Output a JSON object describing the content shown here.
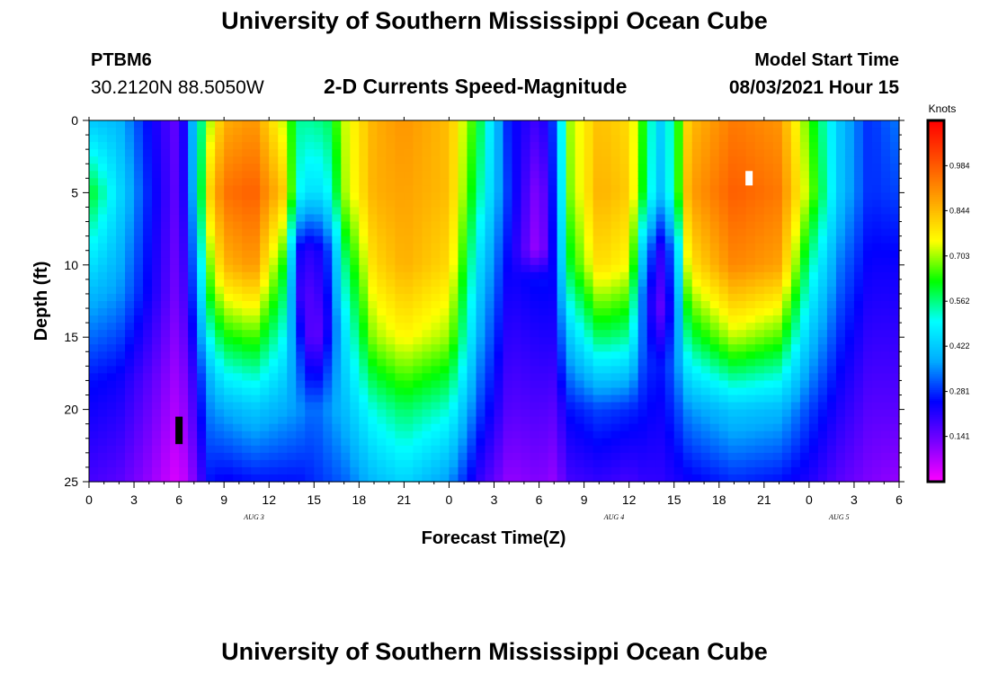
{
  "header": {
    "title": "University of Southern Mississippi Ocean Cube",
    "station_id": "PTBM6",
    "station_coords": "30.2120N  88.5050W",
    "plot_title": "2-D Currents Speed-Magnitude",
    "model_start_label": "Model Start Time",
    "model_start_value": "08/03/2021 Hour 15"
  },
  "footer": {
    "title": "University of Southern Mississippi Ocean Cube"
  },
  "chart_data": {
    "type": "heatmap",
    "title": "2-D Currents Speed-Magnitude",
    "xlabel": "Forecast Time(Z)",
    "ylabel": "Depth (ft)",
    "x_hours_range": [
      0,
      54
    ],
    "x_tick_labels": [
      "0",
      "3",
      "6",
      "9",
      "12",
      "15",
      "18",
      "21",
      "0",
      "3",
      "6",
      "9",
      "12",
      "15",
      "18",
      "21",
      "0",
      "3",
      "6"
    ],
    "y_range": [
      0,
      25
    ],
    "y_ticks": [
      0,
      5,
      10,
      15,
      20,
      25
    ],
    "date_labels": [
      {
        "label": "AUG 3",
        "hour": 11
      },
      {
        "label": "AUG 4",
        "hour": 35
      },
      {
        "label": "AUG 5",
        "hour": 50
      }
    ],
    "colorbar": {
      "unit": "Knots",
      "range": [
        0,
        1.125
      ],
      "tick_values": [
        0.141,
        0.281,
        0.422,
        0.562,
        0.703,
        0.844,
        0.984
      ],
      "tick_labels": [
        "0.141",
        "0.281",
        "0.422",
        "0.562",
        "0.703",
        "0.844",
        "0.984"
      ],
      "colors": [
        "#ff00ff",
        "#7a00ff",
        "#0000ff",
        "#00aaff",
        "#00ffff",
        "#00ff00",
        "#ffff00",
        "#ffa500",
        "#ff5000",
        "#ff0000"
      ]
    },
    "columns": [
      {
        "hour": 0,
        "profile": [
          [
            0,
            0.42
          ],
          [
            5,
            0.62
          ],
          [
            12,
            0.4
          ],
          [
            18,
            0.26
          ],
          [
            25,
            0.18
          ]
        ]
      },
      {
        "hour": 2,
        "profile": [
          [
            0,
            0.4
          ],
          [
            5,
            0.45
          ],
          [
            12,
            0.36
          ],
          [
            18,
            0.24
          ],
          [
            25,
            0.16
          ]
        ]
      },
      {
        "hour": 4,
        "profile": [
          [
            0,
            0.25
          ],
          [
            5,
            0.27
          ],
          [
            12,
            0.24
          ],
          [
            18,
            0.16
          ],
          [
            25,
            0.1
          ]
        ]
      },
      {
        "hour": 6,
        "profile": [
          [
            0,
            0.14
          ],
          [
            5,
            0.14
          ],
          [
            12,
            0.12
          ],
          [
            18,
            0.08
          ],
          [
            25,
            0.03
          ]
        ]
      },
      {
        "hour": 7,
        "profile": [
          [
            0,
            0.42
          ],
          [
            5,
            0.4
          ],
          [
            12,
            0.3
          ],
          [
            18,
            0.2
          ],
          [
            25,
            0.12
          ]
        ]
      },
      {
        "hour": 8,
        "profile": [
          [
            0,
            0.7
          ],
          [
            5,
            0.8
          ],
          [
            12,
            0.62
          ],
          [
            18,
            0.38
          ],
          [
            25,
            0.26
          ]
        ]
      },
      {
        "hour": 9,
        "profile": [
          [
            0,
            0.86
          ],
          [
            5,
            0.95
          ],
          [
            10,
            0.85
          ],
          [
            15,
            0.62
          ],
          [
            20,
            0.38
          ],
          [
            25,
            0.24
          ]
        ]
      },
      {
        "hour": 11,
        "profile": [
          [
            0,
            0.9
          ],
          [
            5,
            0.98
          ],
          [
            10,
            0.9
          ],
          [
            15,
            0.66
          ],
          [
            20,
            0.42
          ],
          [
            25,
            0.26
          ]
        ]
      },
      {
        "hour": 13,
        "profile": [
          [
            0,
            0.72
          ],
          [
            5,
            0.82
          ],
          [
            10,
            0.62
          ],
          [
            15,
            0.5
          ],
          [
            20,
            0.38
          ],
          [
            25,
            0.26
          ]
        ]
      },
      {
        "hour": 14,
        "profile": [
          [
            0,
            0.55
          ],
          [
            5,
            0.5
          ],
          [
            9,
            0.24
          ],
          [
            12,
            0.2
          ],
          [
            16,
            0.3
          ],
          [
            20,
            0.36
          ],
          [
            25,
            0.26
          ]
        ]
      },
      {
        "hour": 15,
        "profile": [
          [
            0,
            0.55
          ],
          [
            5,
            0.44
          ],
          [
            9,
            0.2
          ],
          [
            15,
            0.12
          ],
          [
            20,
            0.32
          ],
          [
            25,
            0.28
          ]
        ]
      },
      {
        "hour": 16,
        "profile": [
          [
            0,
            0.58
          ],
          [
            5,
            0.5
          ],
          [
            9,
            0.3
          ],
          [
            14,
            0.24
          ],
          [
            20,
            0.36
          ],
          [
            25,
            0.3
          ]
        ]
      },
      {
        "hour": 17,
        "profile": [
          [
            0,
            0.72
          ],
          [
            5,
            0.7
          ],
          [
            10,
            0.55
          ],
          [
            15,
            0.45
          ],
          [
            20,
            0.4
          ],
          [
            25,
            0.32
          ]
        ]
      },
      {
        "hour": 19,
        "profile": [
          [
            0,
            0.86
          ],
          [
            5,
            0.86
          ],
          [
            10,
            0.8
          ],
          [
            15,
            0.7
          ],
          [
            20,
            0.52
          ],
          [
            25,
            0.4
          ]
        ]
      },
      {
        "hour": 21,
        "profile": [
          [
            0,
            0.9
          ],
          [
            5,
            0.88
          ],
          [
            10,
            0.86
          ],
          [
            15,
            0.76
          ],
          [
            20,
            0.58
          ],
          [
            25,
            0.44
          ]
        ]
      },
      {
        "hour": 24,
        "profile": [
          [
            0,
            0.84
          ],
          [
            5,
            0.84
          ],
          [
            10,
            0.8
          ],
          [
            15,
            0.7
          ],
          [
            20,
            0.52
          ],
          [
            25,
            0.36
          ]
        ]
      },
      {
        "hour": 26,
        "profile": [
          [
            0,
            0.6
          ],
          [
            5,
            0.55
          ],
          [
            10,
            0.45
          ],
          [
            15,
            0.38
          ],
          [
            20,
            0.3
          ],
          [
            25,
            0.2
          ]
        ]
      },
      {
        "hour": 28,
        "profile": [
          [
            0,
            0.26
          ],
          [
            5,
            0.28
          ],
          [
            10,
            0.24
          ],
          [
            15,
            0.2
          ],
          [
            20,
            0.16
          ],
          [
            25,
            0.1
          ]
        ]
      },
      {
        "hour": 30,
        "profile": [
          [
            0,
            0.18
          ],
          [
            5,
            0.1
          ],
          [
            9,
            0.08
          ],
          [
            11,
            0.26
          ],
          [
            15,
            0.22
          ],
          [
            25,
            0.12
          ]
        ]
      },
      {
        "hour": 31,
        "profile": [
          [
            0,
            0.3
          ],
          [
            5,
            0.28
          ],
          [
            10,
            0.26
          ],
          [
            15,
            0.22
          ],
          [
            20,
            0.16
          ],
          [
            25,
            0.1
          ]
        ]
      },
      {
        "hour": 32,
        "profile": [
          [
            0,
            0.7
          ],
          [
            5,
            0.68
          ],
          [
            10,
            0.6
          ],
          [
            15,
            0.42
          ],
          [
            20,
            0.26
          ],
          [
            25,
            0.18
          ]
        ]
      },
      {
        "hour": 34,
        "profile": [
          [
            0,
            0.84
          ],
          [
            5,
            0.86
          ],
          [
            10,
            0.8
          ],
          [
            15,
            0.58
          ],
          [
            20,
            0.3
          ],
          [
            25,
            0.2
          ]
        ]
      },
      {
        "hour": 36,
        "profile": [
          [
            0,
            0.8
          ],
          [
            5,
            0.82
          ],
          [
            10,
            0.75
          ],
          [
            15,
            0.55
          ],
          [
            20,
            0.28
          ],
          [
            25,
            0.18
          ]
        ]
      },
      {
        "hour": 37,
        "profile": [
          [
            0,
            0.62
          ],
          [
            5,
            0.6
          ],
          [
            9,
            0.4
          ],
          [
            12,
            0.3
          ],
          [
            16,
            0.3
          ],
          [
            20,
            0.26
          ],
          [
            25,
            0.2
          ]
        ]
      },
      {
        "hour": 38,
        "profile": [
          [
            0,
            0.42
          ],
          [
            5,
            0.4
          ],
          [
            9,
            0.2
          ],
          [
            13,
            0.14
          ],
          [
            17,
            0.26
          ],
          [
            25,
            0.2
          ]
        ]
      },
      {
        "hour": 39,
        "profile": [
          [
            0,
            0.56
          ],
          [
            5,
            0.55
          ],
          [
            9,
            0.34
          ],
          [
            13,
            0.28
          ],
          [
            17,
            0.32
          ],
          [
            25,
            0.22
          ]
        ]
      },
      {
        "hour": 40,
        "profile": [
          [
            0,
            0.84
          ],
          [
            5,
            0.88
          ],
          [
            10,
            0.78
          ],
          [
            15,
            0.58
          ],
          [
            20,
            0.36
          ],
          [
            25,
            0.24
          ]
        ]
      },
      {
        "hour": 43,
        "profile": [
          [
            0,
            0.94
          ],
          [
            5,
            0.98
          ],
          [
            10,
            0.92
          ],
          [
            15,
            0.72
          ],
          [
            20,
            0.42
          ],
          [
            25,
            0.28
          ]
        ]
      },
      {
        "hour": 46,
        "profile": [
          [
            0,
            0.9
          ],
          [
            5,
            0.94
          ],
          [
            10,
            0.88
          ],
          [
            15,
            0.66
          ],
          [
            20,
            0.4
          ],
          [
            25,
            0.26
          ]
        ]
      },
      {
        "hour": 48,
        "profile": [
          [
            0,
            0.66
          ],
          [
            5,
            0.7
          ],
          [
            10,
            0.55
          ],
          [
            15,
            0.42
          ],
          [
            20,
            0.3
          ],
          [
            25,
            0.22
          ]
        ]
      },
      {
        "hour": 50,
        "profile": [
          [
            0,
            0.42
          ],
          [
            5,
            0.42
          ],
          [
            10,
            0.34
          ],
          [
            15,
            0.28
          ],
          [
            20,
            0.22
          ],
          [
            25,
            0.16
          ]
        ]
      },
      {
        "hour": 52,
        "profile": [
          [
            0,
            0.28
          ],
          [
            5,
            0.28
          ],
          [
            10,
            0.24
          ],
          [
            15,
            0.2
          ],
          [
            20,
            0.16
          ],
          [
            25,
            0.12
          ]
        ]
      },
      {
        "hour": 54,
        "profile": [
          [
            0,
            0.34
          ],
          [
            5,
            0.3
          ],
          [
            10,
            0.24
          ],
          [
            15,
            0.2
          ],
          [
            20,
            0.16
          ],
          [
            25,
            0.1
          ]
        ]
      }
    ],
    "markers": [
      {
        "name": "min-marker",
        "color": "#000000",
        "hour": 6,
        "depth_top": 20.5,
        "depth_bottom": 22.4
      },
      {
        "name": "max-marker",
        "color": "#ffffff",
        "hour": 44,
        "depth_top": 3.5,
        "depth_bottom": 4.5
      }
    ]
  }
}
